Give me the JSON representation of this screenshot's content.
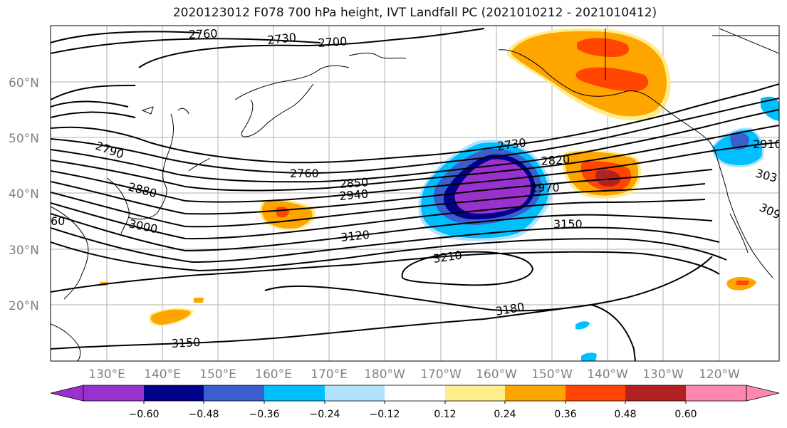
{
  "title": "2020123012 F078 700 hPa height, IVT Landfall PC (2021010212 - 2021010412)",
  "lat_ticks": [
    "60°N",
    "50°N",
    "40°N",
    "30°N",
    "20°N"
  ],
  "lon_ticks": [
    "130°E",
    "140°E",
    "150°E",
    "160°E",
    "170°E",
    "180°W",
    "170°W",
    "160°W",
    "150°W",
    "140°W",
    "130°W",
    "120°W"
  ],
  "contour_labels": [
    "2760",
    "2730",
    "2700",
    "2790",
    "2880",
    "3000",
    "2760",
    "2730",
    "2820",
    "2850",
    "2940",
    "2970",
    "3120",
    "3150",
    "3210",
    "3180",
    "3150",
    "2910",
    "303",
    "309",
    "60"
  ],
  "colorbar": {
    "colors": [
      "#9932CC",
      "#00008B",
      "#3A5FCD",
      "#00BFFF",
      "#B0E2FF",
      "#FFFFFF",
      "#FFEC8B",
      "#FFA500",
      "#FF4500",
      "#B22222",
      "#FF88B0"
    ],
    "tick_labels": [
      "−0.60",
      "−0.48",
      "−0.36",
      "−0.24",
      "−0.12",
      "0.12",
      "0.24",
      "0.36",
      "0.48",
      "0.60"
    ]
  }
}
